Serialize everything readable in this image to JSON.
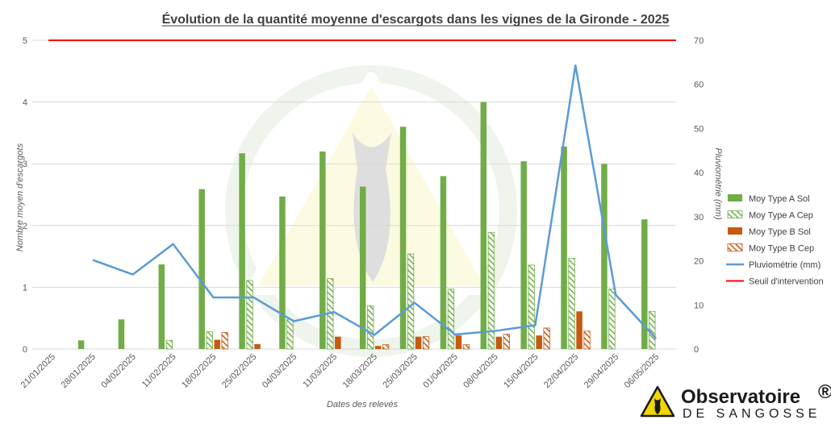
{
  "colors": {
    "type_a": "#70AD47",
    "type_b": "#C55A11",
    "pluvio": "#5B9BD5",
    "seuil": "#FF0000"
  },
  "logo": {
    "name": "Observatoire",
    "registered": "®",
    "tagline": "DE SANGOSSE"
  },
  "chart_data": {
    "type": "bar",
    "title": "Évolution de la quantité moyenne d'escargots dans les vignes de la Gironde - 2025",
    "xlabel": "Dates des relevés",
    "ylabel": "Nombre moyen d'escargots",
    "y2label": "Pluviométrie (mm)",
    "ylim": [
      0,
      5
    ],
    "y2lim": [
      0,
      70
    ],
    "yticks": [
      "0",
      "1",
      "2",
      "3",
      "4",
      "5"
    ],
    "y2ticks": [
      "0",
      "10",
      "20",
      "30",
      "40",
      "50",
      "60",
      "70"
    ],
    "grid": true,
    "legend_position": "right",
    "categories": [
      "21/01/2025",
      "28/01/2025",
      "04/02/2025",
      "11/02/2025",
      "18/02/2025",
      "25/02/2025",
      "04/03/2025",
      "11/03/2025",
      "18/03/2025",
      "25/03/2025",
      "01/04/2025",
      "08/04/2025",
      "15/04/2025",
      "22/04/2025",
      "29/04/2025",
      "06/05/2025"
    ],
    "series": [
      {
        "name": "Moy Type A Sol",
        "kind": "bar",
        "style": "solid",
        "color": "#70AD47",
        "values": [
          0,
          0.14,
          0.48,
          1.37,
          2.59,
          3.17,
          2.47,
          3.2,
          2.63,
          3.6,
          2.8,
          4.0,
          3.04,
          3.28,
          3.0,
          2.1
        ]
      },
      {
        "name": "Moy Type A Cep",
        "kind": "bar",
        "style": "hatched",
        "color": "#70AD47",
        "values": [
          0,
          0,
          0,
          0.14,
          0.28,
          1.11,
          0.48,
          1.14,
          0.7,
          1.54,
          0.97,
          1.89,
          1.36,
          1.47,
          0.97,
          0.61
        ]
      },
      {
        "name": "Moy Type B Sol",
        "kind": "bar",
        "style": "solid",
        "color": "#C55A11",
        "values": [
          0,
          0,
          0,
          0,
          0.15,
          0.08,
          0,
          0.2,
          0.05,
          0.2,
          0.22,
          0.2,
          0.22,
          0.61,
          0,
          0
        ]
      },
      {
        "name": "Moy Type B Cep",
        "kind": "bar",
        "style": "hatched",
        "color": "#C55A11",
        "values": [
          0,
          0,
          0,
          0,
          0.27,
          0,
          0,
          0,
          0.07,
          0.2,
          0.07,
          0.24,
          0.34,
          0.29,
          0,
          0
        ]
      },
      {
        "name": "Pluviométrie (mm)",
        "kind": "line",
        "axis": "right",
        "color": "#5B9BD5",
        "values": [
          null,
          20.2,
          16.9,
          23.8,
          11.7,
          11.7,
          6.3,
          8.4,
          3.2,
          10.5,
          3.3,
          4.1,
          5.4,
          64.3,
          12.3,
          2.4
        ]
      },
      {
        "name": "Seuil d'intervention",
        "kind": "threshold",
        "color": "#FF0000",
        "value": 5
      }
    ]
  }
}
